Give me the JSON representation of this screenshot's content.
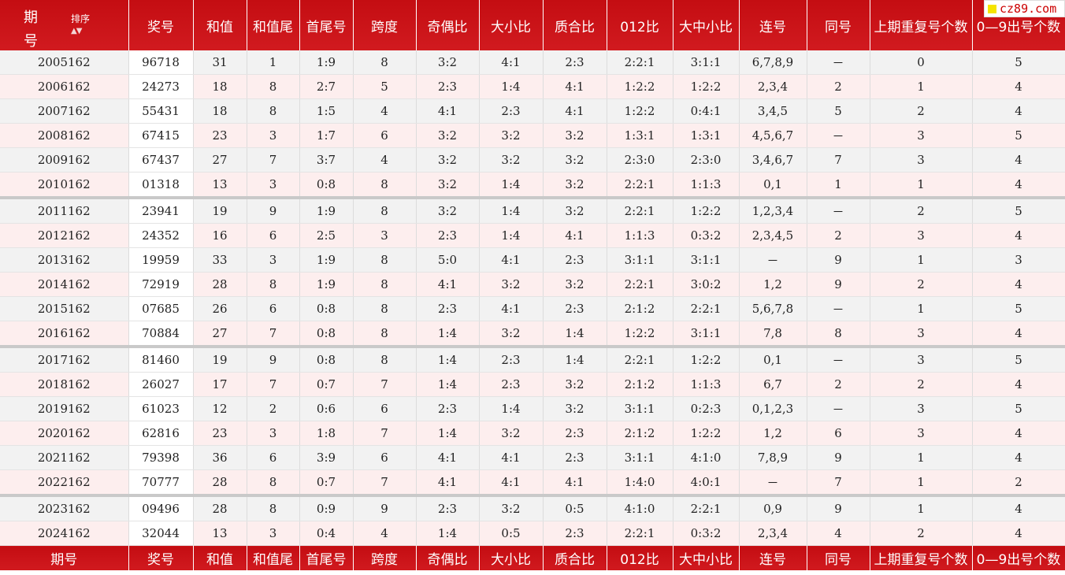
{
  "header": {
    "period_1": "期",
    "period_2": "号",
    "sort_label": "排序",
    "sort_icon": "▲▼",
    "columns": [
      "奖号",
      "和值",
      "和值尾",
      "首尾号",
      "跨度",
      "奇偶比",
      "大小比",
      "质合比",
      "012比",
      "大中小比",
      "连号",
      "同号",
      "上期重复号个数",
      "0—9出号个数"
    ]
  },
  "logo": {
    "text": "cz89.com",
    "accent": "#f5e400"
  },
  "footer": [
    "期号",
    "奖号",
    "和值",
    "和值尾",
    "首尾号",
    "跨度",
    "奇偶比",
    "大小比",
    "质合比",
    "012比",
    "大中小比",
    "连号",
    "同号",
    "上期重复号个数",
    "0—9出号个数"
  ],
  "colors": {
    "header_bg": "#c8060b",
    "row_odd": "#f2f2f2",
    "row_even": "#fdeeee"
  },
  "rows": [
    [
      "2005162",
      "96718",
      "31",
      "1",
      "1:9",
      "8",
      "3:2",
      "4:1",
      "2:3",
      "2:2:1",
      "3:1:1",
      "6,7,8,9",
      "－",
      "0",
      "5"
    ],
    [
      "2006162",
      "24273",
      "18",
      "8",
      "2:7",
      "5",
      "2:3",
      "1:4",
      "4:1",
      "1:2:2",
      "1:2:2",
      "2,3,4",
      "2",
      "1",
      "4"
    ],
    [
      "2007162",
      "55431",
      "18",
      "8",
      "1:5",
      "4",
      "4:1",
      "2:3",
      "4:1",
      "1:2:2",
      "0:4:1",
      "3,4,5",
      "5",
      "2",
      "4"
    ],
    [
      "2008162",
      "67415",
      "23",
      "3",
      "1:7",
      "6",
      "3:2",
      "3:2",
      "3:2",
      "1:3:1",
      "1:3:1",
      "4,5,6,7",
      "－",
      "3",
      "5"
    ],
    [
      "2009162",
      "67437",
      "27",
      "7",
      "3:7",
      "4",
      "3:2",
      "3:2",
      "3:2",
      "2:3:0",
      "2:3:0",
      "3,4,6,7",
      "7",
      "3",
      "4"
    ],
    [
      "2010162",
      "01318",
      "13",
      "3",
      "0:8",
      "8",
      "3:2",
      "1:4",
      "3:2",
      "2:2:1",
      "1:1:3",
      "0,1",
      "1",
      "1",
      "4"
    ],
    [
      "2011162",
      "23941",
      "19",
      "9",
      "1:9",
      "8",
      "3:2",
      "1:4",
      "3:2",
      "2:2:1",
      "1:2:2",
      "1,2,3,4",
      "－",
      "2",
      "5"
    ],
    [
      "2012162",
      "24352",
      "16",
      "6",
      "2:5",
      "3",
      "2:3",
      "1:4",
      "4:1",
      "1:1:3",
      "0:3:2",
      "2,3,4,5",
      "2",
      "3",
      "4"
    ],
    [
      "2013162",
      "19959",
      "33",
      "3",
      "1:9",
      "8",
      "5:0",
      "4:1",
      "2:3",
      "3:1:1",
      "3:1:1",
      "－",
      "9",
      "1",
      "3"
    ],
    [
      "2014162",
      "72919",
      "28",
      "8",
      "1:9",
      "8",
      "4:1",
      "3:2",
      "3:2",
      "2:2:1",
      "3:0:2",
      "1,2",
      "9",
      "2",
      "4"
    ],
    [
      "2015162",
      "07685",
      "26",
      "6",
      "0:8",
      "8",
      "2:3",
      "4:1",
      "2:3",
      "2:1:2",
      "2:2:1",
      "5,6,7,8",
      "－",
      "1",
      "5"
    ],
    [
      "2016162",
      "70884",
      "27",
      "7",
      "0:8",
      "8",
      "1:4",
      "3:2",
      "1:4",
      "1:2:2",
      "3:1:1",
      "7,8",
      "8",
      "3",
      "4"
    ],
    [
      "2017162",
      "81460",
      "19",
      "9",
      "0:8",
      "8",
      "1:4",
      "2:3",
      "1:4",
      "2:2:1",
      "1:2:2",
      "0,1",
      "－",
      "3",
      "5"
    ],
    [
      "2018162",
      "26027",
      "17",
      "7",
      "0:7",
      "7",
      "1:4",
      "2:3",
      "3:2",
      "2:1:2",
      "1:1:3",
      "6,7",
      "2",
      "2",
      "4"
    ],
    [
      "2019162",
      "61023",
      "12",
      "2",
      "0:6",
      "6",
      "2:3",
      "1:4",
      "3:2",
      "3:1:1",
      "0:2:3",
      "0,1,2,3",
      "－",
      "3",
      "5"
    ],
    [
      "2020162",
      "62816",
      "23",
      "3",
      "1:8",
      "7",
      "1:4",
      "3:2",
      "2:3",
      "2:1:2",
      "1:2:2",
      "1,2",
      "6",
      "3",
      "4"
    ],
    [
      "2021162",
      "79398",
      "36",
      "6",
      "3:9",
      "6",
      "4:1",
      "4:1",
      "2:3",
      "3:1:1",
      "4:1:0",
      "7,8,9",
      "9",
      "1",
      "4"
    ],
    [
      "2022162",
      "70777",
      "28",
      "8",
      "0:7",
      "7",
      "4:1",
      "4:1",
      "4:1",
      "1:4:0",
      "4:0:1",
      "－",
      "7",
      "1",
      "2"
    ],
    [
      "2023162",
      "09496",
      "28",
      "8",
      "0:9",
      "9",
      "2:3",
      "3:2",
      "0:5",
      "4:1:0",
      "2:2:1",
      "0,9",
      "9",
      "1",
      "4"
    ],
    [
      "2024162",
      "32044",
      "13",
      "3",
      "0:4",
      "4",
      "1:4",
      "0:5",
      "2:3",
      "2:2:1",
      "0:3:2",
      "2,3,4",
      "4",
      "2",
      "4"
    ]
  ]
}
